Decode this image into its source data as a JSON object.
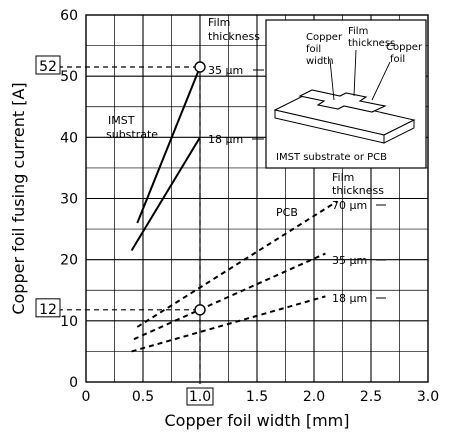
{
  "chart_data": {
    "type": "line",
    "xlabel": "Copper foil width [mm]",
    "ylabel": "Copper foil fusing current [A]",
    "xlim": [
      0,
      3.0
    ],
    "ylim": [
      0,
      60
    ],
    "x_ticks": [
      "0",
      "0.5",
      "1.0",
      "1.5",
      "2.0",
      "2.5",
      "3.0"
    ],
    "y_ticks": [
      "0",
      "10",
      "20",
      "30",
      "40",
      "50",
      "60"
    ],
    "grid": true,
    "series": [
      {
        "name": "IMST substrate 35 µm",
        "style": "solid",
        "x": [
          0.45,
          1.0
        ],
        "y": [
          26,
          51.5
        ]
      },
      {
        "name": "IMST substrate 18 µm",
        "style": "solid",
        "x": [
          0.4,
          1.0
        ],
        "y": [
          21.5,
          40
        ]
      },
      {
        "name": "PCB 70 µm",
        "style": "dashed",
        "x": [
          0.45,
          2.2
        ],
        "y": [
          9,
          29.5
        ]
      },
      {
        "name": "PCB 35 µm",
        "style": "dashed",
        "x": [
          0.42,
          2.1
        ],
        "y": [
          7,
          21
        ]
      },
      {
        "name": "PCB 18 µm",
        "style": "dashed",
        "x": [
          0.4,
          2.1
        ],
        "y": [
          5,
          14
        ]
      }
    ],
    "markers": [
      {
        "x": 1.0,
        "y": 51.5
      },
      {
        "x": 1.0,
        "y": 11.8
      }
    ],
    "reference": {
      "x_value_label": "1.0",
      "y_values": [
        {
          "label": "52",
          "value": 51.5
        },
        {
          "label": "12",
          "value": 11.8
        }
      ]
    },
    "annotations": {
      "film_thickness_top": [
        "Film",
        "thickness"
      ],
      "film_thickness_pcb": [
        "Film",
        "thickness"
      ],
      "imst_label": [
        "IMST",
        "substrate"
      ],
      "pcb_label": "PCB",
      "label_35_imst": "35 µm",
      "label_18_imst": "18 µm",
      "label_70_pcb": "70 µm",
      "label_35_pcb": "35 µm",
      "label_18_pcb": "18 µm"
    },
    "inset": {
      "copper_foil_width": [
        "Copper",
        "foil",
        "width"
      ],
      "film_thickness": [
        "Film",
        "thickness"
      ],
      "copper_foil": [
        "Copper",
        "foil"
      ],
      "substrate": "IMST substrate or PCB"
    }
  }
}
